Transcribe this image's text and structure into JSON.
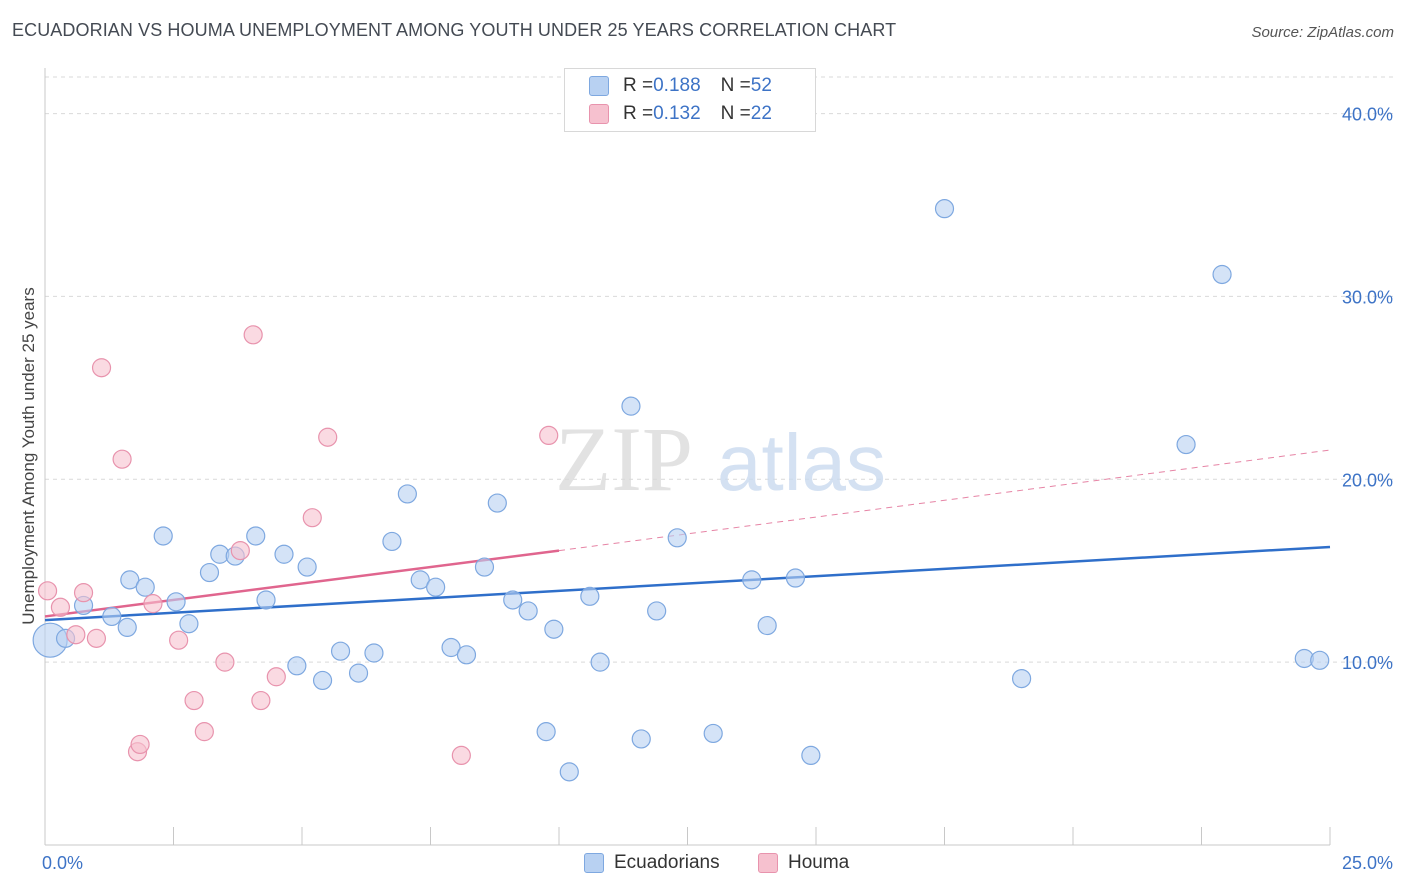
{
  "title": "ECUADORIAN VS HOUMA UNEMPLOYMENT AMONG YOUTH UNDER 25 YEARS CORRELATION CHART",
  "source": "Source: ZipAtlas.com",
  "watermark": {
    "zip": "ZIP",
    "atlas": "atlas"
  },
  "colors": {
    "blue_fill": "#b8d1f2",
    "blue_stroke": "#7ea8e0",
    "blue_line": "#2f6fca",
    "pink_fill": "#f6c1cf",
    "pink_stroke": "#e893ad",
    "pink_line": "#e0658e",
    "axis_text": "#3d73c6",
    "grid": "#d9d9d9"
  },
  "legend": {
    "rows": [
      {
        "r_label": "R = ",
        "r_value": "0.188",
        "n_label": "N = ",
        "n_value": "52"
      },
      {
        "r_label": "R = ",
        "r_value": "0.132",
        "n_label": "N = ",
        "n_value": "22"
      }
    ],
    "bottom": [
      "Ecuadorians",
      "Houma"
    ]
  },
  "chart_data": {
    "type": "scatter",
    "title": "ECUADORIAN VS HOUMA UNEMPLOYMENT AMONG YOUTH UNDER 25 YEARS CORRELATION CHART",
    "xlabel": "",
    "ylabel": "Unemployment Among Youth under 25 years",
    "xlim": [
      0,
      25
    ],
    "ylim": [
      0,
      42
    ],
    "x_tick_labels": [
      "0.0%",
      "25.0%"
    ],
    "y_ticks": [
      10,
      20,
      30,
      40
    ],
    "y_tick_labels": [
      "10.0%",
      "20.0%",
      "30.0%",
      "40.0%"
    ],
    "grid": true,
    "series": [
      {
        "name": "Ecuadorians",
        "points": [
          [
            0.1,
            11.2
          ],
          [
            0.4,
            11.3
          ],
          [
            0.75,
            13.1
          ],
          [
            1.3,
            12.5
          ],
          [
            1.6,
            11.9
          ],
          [
            1.65,
            14.5
          ],
          [
            1.95,
            14.1
          ],
          [
            2.3,
            16.9
          ],
          [
            2.55,
            13.3
          ],
          [
            2.8,
            12.1
          ],
          [
            3.2,
            14.9
          ],
          [
            3.4,
            15.9
          ],
          [
            3.7,
            15.8
          ],
          [
            4.1,
            16.9
          ],
          [
            4.3,
            13.4
          ],
          [
            4.65,
            15.9
          ],
          [
            4.9,
            9.8
          ],
          [
            5.1,
            15.2
          ],
          [
            5.4,
            9.0
          ],
          [
            5.75,
            10.6
          ],
          [
            6.1,
            9.4
          ],
          [
            6.4,
            10.5
          ],
          [
            6.75,
            16.6
          ],
          [
            7.05,
            19.2
          ],
          [
            7.3,
            14.5
          ],
          [
            7.6,
            14.1
          ],
          [
            7.9,
            10.8
          ],
          [
            8.2,
            10.4
          ],
          [
            8.55,
            15.2
          ],
          [
            8.8,
            18.7
          ],
          [
            9.1,
            13.4
          ],
          [
            9.4,
            12.8
          ],
          [
            9.75,
            6.2
          ],
          [
            9.9,
            11.8
          ],
          [
            10.2,
            4.0
          ],
          [
            10.6,
            13.6
          ],
          [
            10.8,
            10.0
          ],
          [
            11.4,
            24.0
          ],
          [
            11.6,
            5.8
          ],
          [
            11.9,
            12.8
          ],
          [
            12.3,
            16.8
          ],
          [
            13.0,
            6.1
          ],
          [
            13.75,
            14.5
          ],
          [
            14.05,
            12.0
          ],
          [
            14.6,
            14.6
          ],
          [
            14.9,
            4.9
          ],
          [
            17.5,
            34.8
          ],
          [
            19.0,
            9.1
          ],
          [
            22.2,
            21.9
          ],
          [
            22.9,
            31.2
          ],
          [
            24.5,
            10.2
          ],
          [
            24.8,
            10.1
          ]
        ],
        "trend": {
          "x": [
            0,
            25
          ],
          "y": [
            12.3,
            16.3
          ]
        }
      },
      {
        "name": "Houma",
        "points": [
          [
            0.05,
            13.9
          ],
          [
            0.3,
            13.0
          ],
          [
            0.6,
            11.5
          ],
          [
            0.75,
            13.8
          ],
          [
            1.0,
            11.3
          ],
          [
            1.1,
            26.1
          ],
          [
            1.5,
            21.1
          ],
          [
            1.8,
            5.1
          ],
          [
            1.85,
            5.5
          ],
          [
            2.1,
            13.2
          ],
          [
            2.6,
            11.2
          ],
          [
            2.9,
            7.9
          ],
          [
            3.1,
            6.2
          ],
          [
            3.5,
            10.0
          ],
          [
            3.8,
            16.1
          ],
          [
            4.05,
            27.9
          ],
          [
            4.2,
            7.9
          ],
          [
            4.5,
            9.2
          ],
          [
            5.2,
            17.9
          ],
          [
            5.5,
            22.3
          ],
          [
            8.1,
            4.9
          ],
          [
            9.8,
            22.4
          ]
        ],
        "trend": {
          "x": [
            0,
            10.0
          ],
          "y": [
            12.5,
            16.1
          ]
        },
        "trend_extension": {
          "x": [
            10.0,
            25
          ],
          "y": [
            16.1,
            21.6
          ]
        }
      }
    ]
  }
}
